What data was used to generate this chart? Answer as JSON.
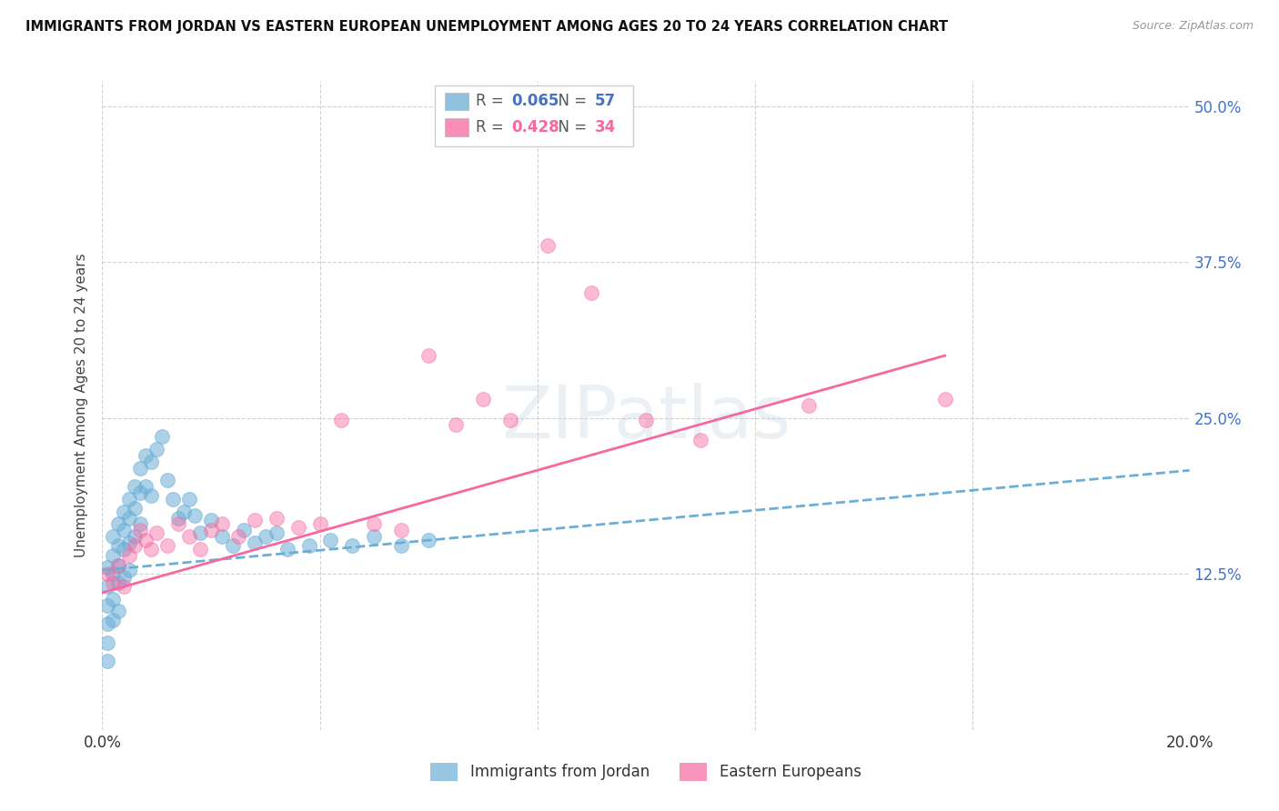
{
  "title": "IMMIGRANTS FROM JORDAN VS EASTERN EUROPEAN UNEMPLOYMENT AMONG AGES 20 TO 24 YEARS CORRELATION CHART",
  "source": "Source: ZipAtlas.com",
  "ylabel": "Unemployment Among Ages 20 to 24 years",
  "xlim": [
    0.0,
    0.2
  ],
  "ylim": [
    0.0,
    0.52
  ],
  "xticks": [
    0.0,
    0.04,
    0.08,
    0.12,
    0.16,
    0.2
  ],
  "xticklabels": [
    "0.0%",
    "",
    "",
    "",
    "",
    "20.0%"
  ],
  "ytick_positions": [
    0.0,
    0.125,
    0.25,
    0.375,
    0.5
  ],
  "yticklabels_right": [
    "",
    "12.5%",
    "25.0%",
    "37.5%",
    "50.0%"
  ],
  "r_jordan": 0.065,
  "n_jordan": 57,
  "r_eastern": 0.428,
  "n_eastern": 34,
  "color_jordan": "#6baed6",
  "color_eastern": "#f768a1",
  "legend_label_jordan": "Immigrants from Jordan",
  "legend_label_eastern": "Eastern Europeans",
  "watermark": "ZIPatlas",
  "jordan_x": [
    0.001,
    0.001,
    0.001,
    0.001,
    0.001,
    0.001,
    0.002,
    0.002,
    0.002,
    0.002,
    0.002,
    0.003,
    0.003,
    0.003,
    0.003,
    0.003,
    0.004,
    0.004,
    0.004,
    0.004,
    0.005,
    0.005,
    0.005,
    0.005,
    0.006,
    0.006,
    0.006,
    0.007,
    0.007,
    0.007,
    0.008,
    0.008,
    0.009,
    0.009,
    0.01,
    0.011,
    0.012,
    0.013,
    0.014,
    0.015,
    0.016,
    0.017,
    0.018,
    0.02,
    0.022,
    0.024,
    0.026,
    0.028,
    0.03,
    0.032,
    0.034,
    0.038,
    0.042,
    0.046,
    0.05,
    0.055,
    0.06
  ],
  "jordan_y": [
    0.13,
    0.115,
    0.1,
    0.085,
    0.07,
    0.055,
    0.155,
    0.14,
    0.125,
    0.105,
    0.088,
    0.165,
    0.148,
    0.132,
    0.118,
    0.095,
    0.175,
    0.16,
    0.145,
    0.122,
    0.185,
    0.17,
    0.15,
    0.128,
    0.195,
    0.178,
    0.155,
    0.21,
    0.19,
    0.165,
    0.22,
    0.195,
    0.215,
    0.188,
    0.225,
    0.235,
    0.2,
    0.185,
    0.17,
    0.175,
    0.185,
    0.172,
    0.158,
    0.168,
    0.155,
    0.148,
    0.16,
    0.15,
    0.155,
    0.158,
    0.145,
    0.148,
    0.152,
    0.148,
    0.155,
    0.148,
    0.152
  ],
  "eastern_x": [
    0.001,
    0.002,
    0.003,
    0.004,
    0.005,
    0.006,
    0.007,
    0.008,
    0.009,
    0.01,
    0.012,
    0.014,
    0.016,
    0.018,
    0.02,
    0.022,
    0.025,
    0.028,
    0.032,
    0.036,
    0.04,
    0.044,
    0.05,
    0.055,
    0.06,
    0.065,
    0.07,
    0.075,
    0.082,
    0.09,
    0.1,
    0.11,
    0.13,
    0.155
  ],
  "eastern_y": [
    0.125,
    0.118,
    0.132,
    0.115,
    0.14,
    0.148,
    0.16,
    0.152,
    0.145,
    0.158,
    0.148,
    0.165,
    0.155,
    0.145,
    0.16,
    0.165,
    0.155,
    0.168,
    0.17,
    0.162,
    0.165,
    0.248,
    0.165,
    0.16,
    0.3,
    0.245,
    0.265,
    0.248,
    0.388,
    0.35,
    0.248,
    0.232,
    0.26,
    0.265
  ],
  "jordan_line_x": [
    0.0,
    0.2
  ],
  "jordan_line_y": [
    0.128,
    0.208
  ],
  "eastern_line_x": [
    0.0,
    0.155
  ],
  "eastern_line_y": [
    0.11,
    0.3
  ]
}
